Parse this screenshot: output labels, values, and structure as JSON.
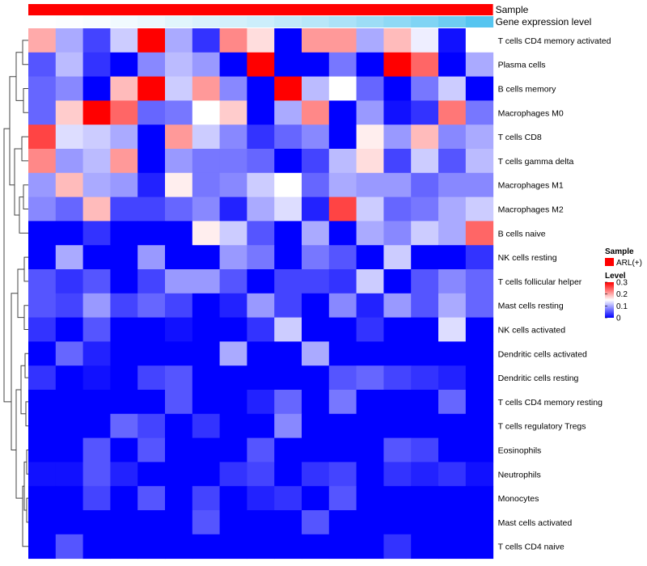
{
  "chart_data": {
    "type": "heatmap",
    "annotations": [
      {
        "name": "Sample",
        "color_scale": [
          "#ff0000",
          "#ff0000"
        ]
      },
      {
        "name": "Gene expression level",
        "color_scale": [
          "#ffffff",
          "#56c5f0"
        ]
      }
    ],
    "rows": [
      "T cells CD4 memory activated",
      "Plasma cells",
      "B cells memory",
      "Macrophages M0",
      "T cells CD8",
      "T cells gamma delta",
      "Macrophages M1",
      "Macrophages M2",
      "B cells naive",
      "NK cells resting",
      "T cells follicular helper",
      "Mast cells resting",
      "NK cells activated",
      "Dendritic cells activated",
      "Dendritic cells resting",
      "T cells CD4 memory resting",
      "T cells regulatory  Tregs",
      "Eosinophils",
      "Neutrophils",
      "Monocytes",
      "Mast cells activated",
      "T cells CD4 naive"
    ],
    "values": [
      [
        0.2,
        0.1,
        0.04,
        0.12,
        0.3,
        0.1,
        0.03,
        0.22,
        0.17,
        0.0,
        0.21,
        0.21,
        0.1,
        0.19,
        0.14,
        0.01,
        0.15
      ],
      [
        0.05,
        0.11,
        0.03,
        0.0,
        0.08,
        0.11,
        0.09,
        0.0,
        0.3,
        0.0,
        0.0,
        0.07,
        0.0,
        0.3,
        0.24,
        0.0,
        0.1
      ],
      [
        0.06,
        0.08,
        0.0,
        0.19,
        0.3,
        0.12,
        0.21,
        0.08,
        0.0,
        0.3,
        0.11,
        0.15,
        0.06,
        0.0,
        0.07,
        0.12,
        0.0
      ],
      [
        0.06,
        0.18,
        0.3,
        0.24,
        0.06,
        0.07,
        0.15,
        0.18,
        0.0,
        0.1,
        0.22,
        0.0,
        0.09,
        0.01,
        0.03,
        0.23,
        0.07
      ],
      [
        0.26,
        0.13,
        0.12,
        0.1,
        0.0,
        0.21,
        0.12,
        0.08,
        0.03,
        0.06,
        0.08,
        0.0,
        0.16,
        0.09,
        0.19,
        0.08,
        0.1
      ],
      [
        0.22,
        0.09,
        0.11,
        0.21,
        0.0,
        0.09,
        0.07,
        0.07,
        0.06,
        0.0,
        0.04,
        0.11,
        0.17,
        0.04,
        0.12,
        0.05,
        0.11
      ],
      [
        0.09,
        0.19,
        0.1,
        0.09,
        0.02,
        0.16,
        0.07,
        0.08,
        0.12,
        0.15,
        0.06,
        0.1,
        0.09,
        0.09,
        0.06,
        0.08,
        0.08
      ],
      [
        0.08,
        0.06,
        0.19,
        0.04,
        0.04,
        0.06,
        0.08,
        0.02,
        0.1,
        0.13,
        0.02,
        0.26,
        0.12,
        0.06,
        0.07,
        0.1,
        0.12
      ],
      [
        0.0,
        0.0,
        0.03,
        0.0,
        0.0,
        0.0,
        0.16,
        0.12,
        0.05,
        0.0,
        0.1,
        0.0,
        0.1,
        0.08,
        0.12,
        0.1,
        0.24
      ],
      [
        0.0,
        0.1,
        0.0,
        0.0,
        0.09,
        0.0,
        0.0,
        0.09,
        0.07,
        0.0,
        0.07,
        0.05,
        0.0,
        0.12,
        0.0,
        0.0,
        0.03
      ],
      [
        0.05,
        0.03,
        0.05,
        0.0,
        0.04,
        0.09,
        0.09,
        0.05,
        0.0,
        0.04,
        0.04,
        0.03,
        0.12,
        0.0,
        0.05,
        0.08,
        0.06
      ],
      [
        0.05,
        0.04,
        0.09,
        0.04,
        0.06,
        0.04,
        0.0,
        0.02,
        0.09,
        0.04,
        0.0,
        0.08,
        0.02,
        0.09,
        0.05,
        0.1,
        0.06
      ],
      [
        0.03,
        0.0,
        0.05,
        0.0,
        0.0,
        0.01,
        0.0,
        0.0,
        0.03,
        0.12,
        0.0,
        0.0,
        0.03,
        0.0,
        0.0,
        0.13,
        0.0
      ],
      [
        0.0,
        0.06,
        0.02,
        0.0,
        0.0,
        0.0,
        0.0,
        0.1,
        0.0,
        0.0,
        0.1,
        0.0,
        0.0,
        0.0,
        0.0,
        0.0,
        0.0
      ],
      [
        0.03,
        0.0,
        0.01,
        0.0,
        0.04,
        0.05,
        0.0,
        0.0,
        0.0,
        0.0,
        0.0,
        0.05,
        0.06,
        0.04,
        0.03,
        0.02,
        0.0
      ],
      [
        0.0,
        0.0,
        0.0,
        0.0,
        0.0,
        0.05,
        0.0,
        0.0,
        0.02,
        0.06,
        0.0,
        0.07,
        0.0,
        0.0,
        0.0,
        0.06,
        0.0
      ],
      [
        0.0,
        0.0,
        0.0,
        0.06,
        0.04,
        0.0,
        0.03,
        0.0,
        0.0,
        0.08,
        0.0,
        0.0,
        0.0,
        0.0,
        0.0,
        0.0,
        0.0
      ],
      [
        0.0,
        0.0,
        0.05,
        0.0,
        0.05,
        0.0,
        0.0,
        0.0,
        0.05,
        0.0,
        0.0,
        0.0,
        0.0,
        0.05,
        0.04,
        0.0,
        0.0
      ],
      [
        0.01,
        0.01,
        0.05,
        0.02,
        0.0,
        0.0,
        0.0,
        0.03,
        0.04,
        0.0,
        0.03,
        0.04,
        0.0,
        0.03,
        0.02,
        0.03,
        0.01
      ],
      [
        0.0,
        0.0,
        0.04,
        0.0,
        0.05,
        0.0,
        0.04,
        0.0,
        0.02,
        0.03,
        0.0,
        0.05,
        0.0,
        0.0,
        0.0,
        0.0,
        0.0
      ],
      [
        0.0,
        0.0,
        0.0,
        0.0,
        0.0,
        0.0,
        0.05,
        0.0,
        0.0,
        0.0,
        0.05,
        0.0,
        0.0,
        0.0,
        0.0,
        0.0,
        0.0
      ],
      [
        0.0,
        0.05,
        0.0,
        0.0,
        0.0,
        0.0,
        0.0,
        0.0,
        0.0,
        0.0,
        0.0,
        0.0,
        0.0,
        0.03,
        0.0,
        0.0,
        0.0
      ]
    ],
    "gene_expression_level": [
      0.0,
      0.02,
      0.04,
      0.08,
      0.12,
      0.18,
      0.22,
      0.26,
      0.3,
      0.36,
      0.42,
      0.5,
      0.58,
      0.66,
      0.75,
      0.86,
      1.0
    ],
    "color_scale": {
      "low": "#0000ff",
      "mid": "#ffffff",
      "high": "#ff0000",
      "min": 0,
      "max": 0.3
    },
    "legend": {
      "sample_title": "Sample",
      "sample_entry": "ARL(+)",
      "sample_color": "#ff0000",
      "level_title": "Level",
      "ticks": [
        {
          "label": "0.3",
          "value": 0.3
        },
        {
          "label": "0.2",
          "value": 0.2
        },
        {
          "label": "0.1",
          "value": 0.1
        },
        {
          "label": "0",
          "value": 0.0
        }
      ]
    }
  }
}
